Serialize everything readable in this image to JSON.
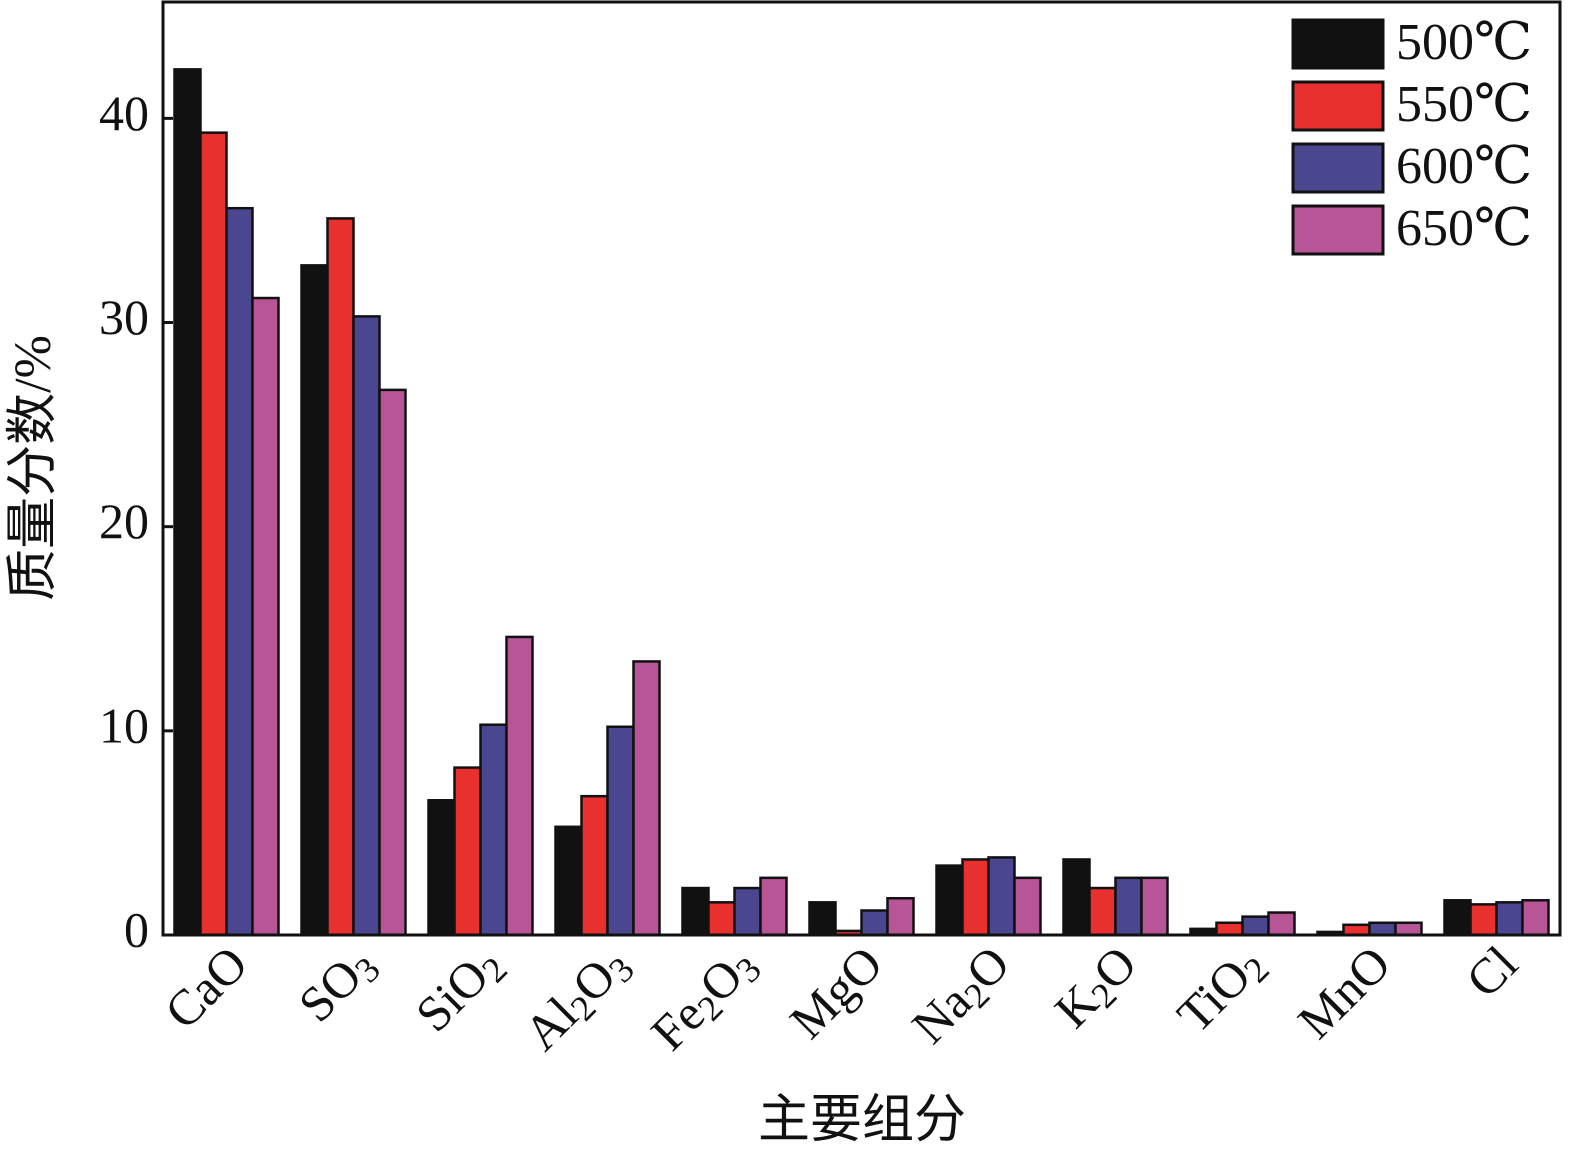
{
  "chart_data": {
    "type": "bar",
    "x_label": "主要组分",
    "y_label": "质量分数/%",
    "categories": [
      "CaO",
      "SO3",
      "SiO2",
      "Al2O3",
      "Fe2O3",
      "MgO",
      "Na2O",
      "K2O",
      "TiO2",
      "MnO",
      "Cl"
    ],
    "series": [
      {
        "name": "500℃",
        "color": "#111111",
        "values": [
          42.4,
          32.8,
          6.6,
          5.3,
          2.3,
          1.6,
          3.4,
          3.7,
          0.3,
          0.15,
          1.7
        ]
      },
      {
        "name": "550℃",
        "color": "#e8312e",
        "values": [
          39.3,
          35.1,
          8.2,
          6.8,
          1.6,
          0.2,
          3.7,
          2.3,
          0.6,
          0.5,
          1.5
        ]
      },
      {
        "name": "600℃",
        "color": "#4a4690",
        "values": [
          35.6,
          30.3,
          10.3,
          10.2,
          2.3,
          1.2,
          3.8,
          2.8,
          0.9,
          0.6,
          1.6
        ]
      },
      {
        "name": "650℃",
        "color": "#b85597",
        "values": [
          31.2,
          26.7,
          14.6,
          13.4,
          2.8,
          1.8,
          2.8,
          2.8,
          1.1,
          0.6,
          1.7
        ]
      }
    ],
    "ylim": [
      0,
      45.7
    ],
    "yticks": [
      0,
      10,
      20,
      30,
      40
    ],
    "legend": "upper right"
  }
}
